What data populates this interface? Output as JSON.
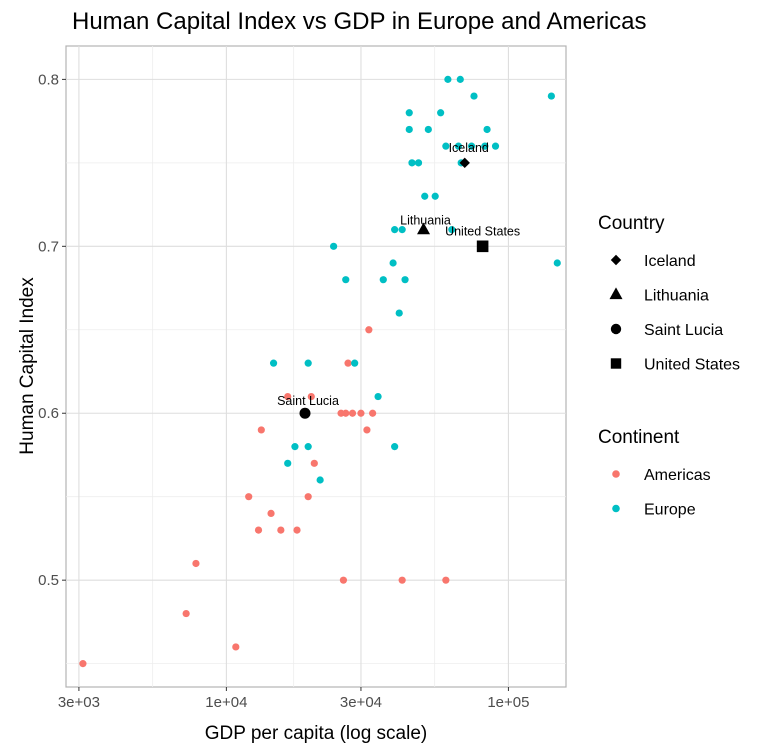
{
  "chart_data": {
    "type": "scatter",
    "title": "Human Capital Index vs GDP in Europe and Americas",
    "xlabel": "GDP per capita (log scale)",
    "ylabel": "Human Capital Index",
    "x_scale": "log",
    "xlim": [
      2700,
      160000
    ],
    "ylim": [
      0.436,
      0.82
    ],
    "x_ticks": [
      3000,
      10000,
      30000,
      100000
    ],
    "x_tick_labels": [
      "3e+03",
      "1e+04",
      "3e+04",
      "1e+05"
    ],
    "x_minor_ticks": [
      5477,
      17321,
      54772
    ],
    "y_ticks": [
      0.5,
      0.6,
      0.7,
      0.8
    ],
    "y_tick_labels": [
      "0.5",
      "0.6",
      "0.7",
      "0.8"
    ],
    "y_minor_ticks": [
      0.45,
      0.55,
      0.65,
      0.75
    ],
    "grid": true,
    "series": [
      {
        "name": "Americas",
        "color": "#F8766D",
        "points": [
          {
            "x": 3100,
            "y": 0.45
          },
          {
            "x": 7200,
            "y": 0.48
          },
          {
            "x": 7800,
            "y": 0.51
          },
          {
            "x": 10800,
            "y": 0.46
          },
          {
            "x": 12000,
            "y": 0.55
          },
          {
            "x": 13000,
            "y": 0.53
          },
          {
            "x": 13300,
            "y": 0.59
          },
          {
            "x": 14400,
            "y": 0.54
          },
          {
            "x": 15600,
            "y": 0.53
          },
          {
            "x": 16500,
            "y": 0.61
          },
          {
            "x": 17800,
            "y": 0.53
          },
          {
            "x": 19500,
            "y": 0.55
          },
          {
            "x": 20000,
            "y": 0.61
          },
          {
            "x": 20500,
            "y": 0.57
          },
          {
            "x": 25500,
            "y": 0.6
          },
          {
            "x": 26000,
            "y": 0.5
          },
          {
            "x": 26500,
            "y": 0.6
          },
          {
            "x": 27000,
            "y": 0.63
          },
          {
            "x": 28000,
            "y": 0.6
          },
          {
            "x": 30000,
            "y": 0.6
          },
          {
            "x": 31500,
            "y": 0.59
          },
          {
            "x": 32000,
            "y": 0.65
          },
          {
            "x": 33000,
            "y": 0.6
          },
          {
            "x": 42000,
            "y": 0.5
          },
          {
            "x": 60000,
            "y": 0.5
          }
        ]
      },
      {
        "name": "Europe",
        "color": "#00BFC4",
        "points": [
          {
            "x": 14700,
            "y": 0.63
          },
          {
            "x": 16500,
            "y": 0.57
          },
          {
            "x": 17500,
            "y": 0.58
          },
          {
            "x": 19500,
            "y": 0.58
          },
          {
            "x": 19500,
            "y": 0.63
          },
          {
            "x": 21500,
            "y": 0.56
          },
          {
            "x": 24000,
            "y": 0.7
          },
          {
            "x": 26500,
            "y": 0.68
          },
          {
            "x": 28500,
            "y": 0.63
          },
          {
            "x": 34500,
            "y": 0.61
          },
          {
            "x": 36000,
            "y": 0.68
          },
          {
            "x": 39500,
            "y": 0.58
          },
          {
            "x": 39000,
            "y": 0.69
          },
          {
            "x": 39500,
            "y": 0.71
          },
          {
            "x": 41000,
            "y": 0.66
          },
          {
            "x": 42000,
            "y": 0.71
          },
          {
            "x": 43000,
            "y": 0.68
          },
          {
            "x": 44500,
            "y": 0.77
          },
          {
            "x": 44500,
            "y": 0.78
          },
          {
            "x": 45500,
            "y": 0.75
          },
          {
            "x": 48000,
            "y": 0.75
          },
          {
            "x": 50500,
            "y": 0.73
          },
          {
            "x": 52000,
            "y": 0.77
          },
          {
            "x": 55000,
            "y": 0.73
          },
          {
            "x": 57500,
            "y": 0.78
          },
          {
            "x": 60000,
            "y": 0.76
          },
          {
            "x": 61000,
            "y": 0.8
          },
          {
            "x": 63000,
            "y": 0.71
          },
          {
            "x": 66500,
            "y": 0.76
          },
          {
            "x": 67500,
            "y": 0.8
          },
          {
            "x": 68000,
            "y": 0.75
          },
          {
            "x": 74000,
            "y": 0.76
          },
          {
            "x": 75500,
            "y": 0.79
          },
          {
            "x": 82500,
            "y": 0.76
          },
          {
            "x": 84000,
            "y": 0.77
          },
          {
            "x": 90000,
            "y": 0.76
          },
          {
            "x": 142000,
            "y": 0.79
          },
          {
            "x": 149000,
            "y": 0.69
          }
        ]
      }
    ],
    "highlighted": [
      {
        "country": "Iceland",
        "shape": "diamond",
        "x": 70000,
        "y": 0.75,
        "label": "Iceland"
      },
      {
        "country": "Lithuania",
        "shape": "triangle",
        "x": 50000,
        "y": 0.71,
        "label": "Lithuania"
      },
      {
        "country": "Saint Lucia",
        "shape": "circle",
        "x": 19000,
        "y": 0.6,
        "label": "Saint Lucia"
      },
      {
        "country": "United States",
        "shape": "square",
        "x": 81000,
        "y": 0.7,
        "label": "United States"
      }
    ],
    "legend": {
      "placement": "right",
      "country_title": "Country",
      "country_items": [
        {
          "label": "Iceland",
          "shape": "diamond"
        },
        {
          "label": "Lithuania",
          "shape": "triangle"
        },
        {
          "label": "Saint Lucia",
          "shape": "circle"
        },
        {
          "label": "United States",
          "shape": "square"
        }
      ],
      "continent_title": "Continent",
      "continent_items": [
        {
          "label": "Americas",
          "color": "#F8766D"
        },
        {
          "label": "Europe",
          "color": "#00BFC4"
        }
      ]
    }
  }
}
